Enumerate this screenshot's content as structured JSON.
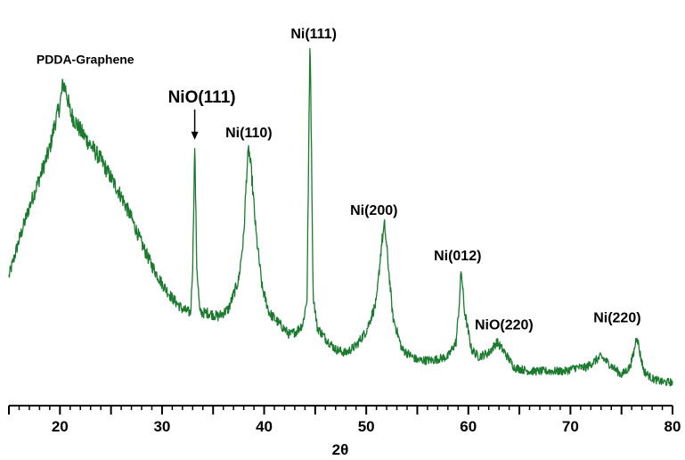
{
  "chart_data": {
    "type": "line",
    "title": "",
    "xlabel": "2θ",
    "ylabel": "",
    "xlim": [
      15,
      80
    ],
    "ylim": [
      0,
      100
    ],
    "x_ticks": [
      20,
      30,
      40,
      50,
      60,
      70,
      80
    ],
    "x_tick_labels": [
      "20",
      "30",
      "40",
      "50",
      "60",
      "70",
      "80"
    ],
    "grid": false,
    "legend": "none",
    "line_color": "#1a7a2e",
    "series": [
      {
        "name": "",
        "x": [
          15,
          16,
          17,
          18,
          19,
          19.5,
          20,
          20.3,
          20.6,
          21,
          22,
          23,
          24,
          25,
          26,
          27,
          28,
          29,
          30,
          31,
          32,
          32.8,
          33.0,
          33.2,
          33.4,
          33.7,
          34.5,
          35.5,
          36.5,
          37.5,
          38.0,
          38.3,
          38.5,
          38.8,
          39.2,
          39.8,
          40.5,
          41.5,
          42.5,
          43.2,
          43.8,
          44.2,
          44.5,
          44.8,
          45.2,
          46,
          47,
          48,
          49,
          50,
          51,
          51.5,
          51.8,
          52.1,
          52.6,
          53.5,
          55,
          56.5,
          58,
          58.8,
          59.1,
          59.3,
          59.6,
          60.3,
          61,
          62,
          62.8,
          63.6,
          64.5,
          66,
          68,
          69.5,
          70.5,
          71.5,
          72.5,
          73,
          73.8,
          75,
          75.8,
          76.2,
          76.5,
          76.8,
          77.2,
          78,
          79,
          80
        ],
        "y": [
          33,
          43,
          52,
          60,
          68,
          75,
          80,
          86,
          84,
          78,
          73,
          69,
          65,
          60,
          55,
          49,
          42,
          36,
          31,
          27,
          24,
          23,
          36,
          69,
          36,
          23,
          23,
          22,
          24,
          32,
          44,
          62,
          68,
          60,
          45,
          30,
          23,
          20,
          17,
          18,
          20,
          27,
          100,
          28,
          19,
          16,
          13,
          12,
          14,
          18,
          26,
          42,
          47,
          38,
          22,
          13,
          10,
          10,
          11,
          15,
          25,
          35,
          24,
          13,
          11,
          12,
          15,
          12,
          8,
          7,
          7,
          7,
          8,
          8,
          10,
          11,
          9,
          6,
          8,
          12,
          17,
          12,
          7,
          5,
          4,
          4
        ]
      }
    ],
    "annotations": [
      {
        "text": "PDDA-Graphene",
        "x": 20.3,
        "y": 86,
        "arrow": false
      },
      {
        "text": "NiO(111)",
        "x": 33.2,
        "y": 69,
        "arrow": true
      },
      {
        "text": "Ni(110)",
        "x": 38.5,
        "y": 68,
        "arrow": false
      },
      {
        "text": "Ni(111)",
        "x": 44.5,
        "y": 100,
        "arrow": false
      },
      {
        "text": "Ni(200)",
        "x": 51.8,
        "y": 47,
        "arrow": false
      },
      {
        "text": "Ni(012)",
        "x": 59.3,
        "y": 35,
        "arrow": false
      },
      {
        "text": "NiO(220)",
        "x": 62.8,
        "y": 15,
        "arrow": false
      },
      {
        "text": "Ni(220)",
        "x": 76.5,
        "y": 17,
        "arrow": false
      }
    ]
  }
}
